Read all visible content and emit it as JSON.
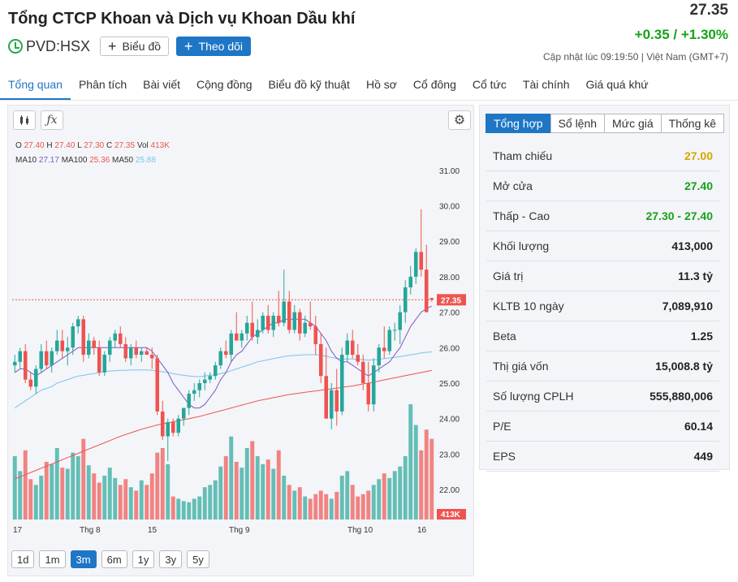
{
  "header": {
    "company": "Tổng CTCP Khoan và Dịch vụ Khoan Dầu khí",
    "ticker": "PVD:HSX",
    "chart_button": "Biểu đồ",
    "follow_button": "Theo dõi",
    "price": "27.35",
    "change": "+0.35 / +1.30%",
    "updated": "Cập nhật lúc  09:19:50 | Việt Nam (GMT+7)"
  },
  "tabs": [
    "Tổng quan",
    "Phân tích",
    "Bài viết",
    "Cộng đồng",
    "Biểu đồ kỹ thuật",
    "Hồ sơ",
    "Cổ đông",
    "Cổ tức",
    "Tài chính",
    "Giá quá khứ"
  ],
  "chart": {
    "ohlc": {
      "o_label": "O",
      "o": "27.40",
      "h_label": "H",
      "h": "27.40",
      "l_label": "L",
      "l": "27.30",
      "c_label": "C",
      "c": "27.35",
      "vol_label": "Vol",
      "vol": "413K"
    },
    "ma": {
      "ma10_label": "MA10",
      "ma10": "27.17",
      "ma100_label": "MA100",
      "ma100": "25.36",
      "ma50_label": "MA50",
      "ma50": "25.88"
    },
    "price_label": "27.35",
    "volume_label": "413K",
    "ranges": [
      "1d",
      "1m",
      "3m",
      "6m",
      "1y",
      "3y",
      "5y"
    ],
    "active_range": "3m",
    "colors": {
      "up": "#26a69a",
      "down": "#ef5350",
      "ma10": "#7e57c2",
      "ma50": "#79c3f0",
      "ma100": "#ef5350",
      "accent": "#1e76c5"
    }
  },
  "summary": {
    "tabs": [
      "Tổng hợp",
      "Sổ lệnh",
      "Mức giá",
      "Thống kê"
    ],
    "rows": [
      {
        "label": "Tham chiếu",
        "value": "27.00",
        "color": "#d4a700"
      },
      {
        "label": "Mở cửa",
        "value": "27.40",
        "color": "#16a218"
      },
      {
        "label": "Thấp - Cao",
        "value": "27.30 - 27.40",
        "color": "#16a218"
      },
      {
        "label": "Khối lượng",
        "value": "413,000",
        "color": "#222222"
      },
      {
        "label": "Giá trị",
        "value": "11.3 tỷ",
        "color": "#222222"
      },
      {
        "label": "KLTB 10 ngày",
        "value": "7,089,910",
        "color": "#222222"
      },
      {
        "label": "Beta",
        "value": "1.25",
        "color": "#222222"
      },
      {
        "label": "Thị giá vốn",
        "value": "15,008.8 tỷ",
        "color": "#222222"
      },
      {
        "label": "Số lượng CPLH",
        "value": "555,880,006",
        "color": "#222222"
      },
      {
        "label": "P/E",
        "value": "60.14",
        "color": "#222222"
      },
      {
        "label": "EPS",
        "value": "449",
        "color": "#222222"
      }
    ]
  },
  "chart_data": {
    "type": "candlestick",
    "y_ticks": [
      "31.00",
      "30.00",
      "29.00",
      "28.00",
      "27.00",
      "26.00",
      "25.00",
      "24.00",
      "23.00",
      "22.00"
    ],
    "ylim": [
      21.2,
      31.5
    ],
    "x_labels": [
      "17",
      "Thg 8",
      "15",
      "Thg 9",
      "Thg 10",
      "16"
    ],
    "reference_price": 27.35,
    "candles": [
      [
        25.5,
        25.8,
        25.3,
        25.6
      ],
      [
        25.6,
        26.0,
        25.4,
        25.9
      ],
      [
        25.9,
        26.1,
        25.0,
        25.1
      ],
      [
        25.1,
        25.3,
        24.8,
        24.9
      ],
      [
        24.9,
        25.5,
        24.7,
        25.4
      ],
      [
        25.4,
        26.1,
        25.3,
        25.9
      ],
      [
        25.9,
        26.2,
        25.4,
        25.5
      ],
      [
        25.5,
        26.0,
        25.3,
        25.9
      ],
      [
        25.9,
        26.5,
        25.8,
        26.2
      ],
      [
        26.2,
        26.5,
        25.7,
        25.9
      ],
      [
        25.9,
        26.3,
        25.5,
        26.0
      ],
      [
        26.0,
        26.7,
        25.8,
        26.6
      ],
      [
        26.6,
        26.9,
        26.4,
        26.8
      ],
      [
        26.8,
        26.9,
        25.6,
        25.8
      ],
      [
        25.8,
        26.4,
        25.7,
        26.2
      ],
      [
        26.2,
        26.3,
        25.8,
        26.0
      ],
      [
        26.0,
        26.2,
        25.2,
        25.3
      ],
      [
        25.3,
        25.9,
        25.2,
        25.8
      ],
      [
        25.8,
        26.3,
        25.6,
        26.2
      ],
      [
        26.2,
        26.5,
        26.0,
        26.4
      ],
      [
        26.4,
        26.6,
        26.0,
        26.1
      ],
      [
        26.1,
        26.3,
        25.6,
        25.7
      ],
      [
        25.7,
        26.1,
        25.5,
        26.0
      ],
      [
        26.0,
        26.2,
        25.7,
        25.8
      ],
      [
        25.8,
        26.0,
        25.6,
        25.9
      ],
      [
        25.9,
        26.0,
        25.8,
        25.8
      ],
      [
        25.8,
        26.0,
        25.4,
        25.7
      ],
      [
        25.7,
        25.8,
        24.1,
        24.2
      ],
      [
        24.2,
        24.5,
        23.4,
        23.5
      ],
      [
        23.5,
        24.0,
        22.8,
        23.9
      ],
      [
        23.9,
        24.0,
        23.5,
        23.6
      ],
      [
        23.6,
        24.1,
        23.5,
        24.0
      ],
      [
        24.0,
        24.3,
        23.8,
        24.3
      ],
      [
        24.3,
        24.8,
        24.1,
        24.7
      ],
      [
        24.7,
        25.0,
        24.5,
        24.8
      ],
      [
        24.8,
        25.1,
        24.6,
        25.0
      ],
      [
        25.0,
        25.3,
        24.8,
        25.1
      ],
      [
        25.1,
        25.3,
        25.0,
        25.2
      ],
      [
        25.2,
        25.6,
        25.1,
        25.5
      ],
      [
        25.5,
        26.0,
        25.4,
        25.9
      ],
      [
        25.9,
        26.2,
        25.7,
        25.8
      ],
      [
        25.8,
        26.5,
        25.6,
        26.4
      ],
      [
        26.4,
        27.0,
        26.2,
        26.2
      ],
      [
        26.2,
        26.5,
        26.0,
        26.4
      ],
      [
        26.4,
        26.9,
        26.2,
        26.7
      ],
      [
        26.7,
        27.3,
        26.2,
        26.3
      ],
      [
        26.3,
        26.8,
        26.1,
        26.5
      ],
      [
        26.5,
        27.0,
        26.4,
        26.9
      ],
      [
        26.9,
        27.2,
        26.4,
        26.5
      ],
      [
        26.5,
        27.0,
        26.3,
        26.9
      ],
      [
        26.9,
        27.6,
        26.6,
        26.7
      ],
      [
        26.7,
        28.2,
        26.6,
        27.3
      ],
      [
        27.3,
        27.6,
        26.4,
        26.5
      ],
      [
        26.5,
        27.2,
        26.4,
        27.0
      ],
      [
        27.0,
        27.1,
        26.2,
        26.4
      ],
      [
        26.4,
        26.9,
        26.3,
        26.7
      ],
      [
        26.7,
        27.3,
        26.5,
        26.6
      ],
      [
        26.6,
        26.9,
        25.8,
        26.1
      ],
      [
        26.1,
        26.4,
        25.0,
        25.2
      ],
      [
        25.2,
        26.0,
        24.0,
        24.0
      ],
      [
        24.0,
        25.0,
        23.7,
        24.8
      ],
      [
        24.8,
        25.4,
        23.8,
        24.2
      ],
      [
        24.2,
        26.0,
        24.1,
        25.8
      ],
      [
        25.8,
        26.4,
        25.6,
        26.2
      ],
      [
        26.2,
        26.5,
        25.7,
        25.8
      ],
      [
        25.8,
        26.1,
        25.5,
        25.6
      ],
      [
        25.6,
        25.8,
        24.8,
        25.0
      ],
      [
        25.0,
        25.6,
        24.2,
        24.4
      ],
      [
        24.4,
        25.7,
        24.2,
        25.5
      ],
      [
        25.5,
        26.1,
        25.3,
        26.0
      ],
      [
        26.0,
        26.6,
        25.7,
        25.9
      ],
      [
        25.9,
        26.6,
        25.8,
        26.5
      ],
      [
        26.5,
        26.7,
        26.2,
        26.5
      ],
      [
        26.5,
        27.2,
        26.1,
        27.0
      ],
      [
        27.0,
        27.9,
        26.7,
        27.7
      ],
      [
        27.7,
        28.3,
        27.5,
        28.0
      ],
      [
        28.0,
        28.8,
        27.8,
        28.7
      ],
      [
        28.7,
        29.9,
        28.0,
        28.2
      ],
      [
        28.2,
        28.9,
        27.0,
        27.0
      ],
      [
        27.4,
        27.4,
        27.3,
        27.35
      ]
    ],
    "volume": [
      0.55,
      0.42,
      0.6,
      0.35,
      0.3,
      0.38,
      0.5,
      0.48,
      0.62,
      0.45,
      0.44,
      0.58,
      0.55,
      0.7,
      0.47,
      0.4,
      0.32,
      0.38,
      0.45,
      0.36,
      0.3,
      0.35,
      0.28,
      0.25,
      0.34,
      0.3,
      0.4,
      0.58,
      0.62,
      0.48,
      0.2,
      0.18,
      0.16,
      0.15,
      0.18,
      0.2,
      0.28,
      0.3,
      0.34,
      0.46,
      0.55,
      0.72,
      0.5,
      0.45,
      0.62,
      0.68,
      0.55,
      0.48,
      0.52,
      0.44,
      0.6,
      0.38,
      0.3,
      0.25,
      0.28,
      0.2,
      0.18,
      0.22,
      0.25,
      0.22,
      0.18,
      0.24,
      0.38,
      0.42,
      0.3,
      0.2,
      0.22,
      0.25,
      0.3,
      0.35,
      0.4,
      0.36,
      0.42,
      0.46,
      0.55,
      1.0,
      0.82,
      0.6,
      0.78,
      0.7
    ],
    "ma10": [
      25.3,
      25.4,
      25.4,
      25.3,
      25.2,
      25.3,
      25.4,
      25.5,
      25.6,
      25.7,
      25.8,
      25.9,
      26.0,
      26.0,
      26.0,
      26.0,
      26.0,
      26.0,
      26.0,
      26.0,
      26.0,
      26.0,
      26.0,
      26.0,
      26.0,
      26.0,
      25.9,
      25.7,
      25.5,
      25.3,
      25.0,
      24.8,
      24.6,
      24.4,
      24.3,
      24.3,
      24.4,
      24.6,
      24.8,
      25.1,
      25.3,
      25.6,
      25.8,
      25.9,
      26.1,
      26.3,
      26.4,
      26.5,
      26.6,
      26.7,
      26.7,
      26.8,
      26.8,
      26.8,
      26.8,
      26.8,
      26.7,
      26.6,
      26.4,
      26.2,
      25.9,
      25.7,
      25.6,
      25.6,
      25.5,
      25.4,
      25.3,
      25.2,
      25.3,
      25.4,
      25.5,
      25.6,
      25.8,
      26.0,
      26.3,
      26.6,
      26.8,
      27.0,
      27.1,
      27.17
    ],
    "ma50": [
      24.3,
      24.4,
      24.5,
      24.6,
      24.7,
      24.8,
      24.85,
      24.9,
      25.0,
      25.05,
      25.1,
      25.15,
      25.2,
      25.22,
      25.25,
      25.27,
      25.3,
      25.32,
      25.34,
      25.35,
      25.36,
      25.36,
      25.37,
      25.37,
      25.37,
      25.37,
      25.36,
      25.34,
      25.32,
      25.3,
      25.27,
      25.24,
      25.22,
      25.2,
      25.19,
      25.18,
      25.2,
      25.22,
      25.24,
      25.27,
      25.3,
      25.35,
      25.4,
      25.45,
      25.5,
      25.55,
      25.6,
      25.63,
      25.66,
      25.69,
      25.72,
      25.75,
      25.77,
      25.78,
      25.79,
      25.8,
      25.8,
      25.8,
      25.78,
      25.76,
      25.72,
      25.7,
      25.68,
      25.68,
      25.68,
      25.67,
      25.66,
      25.65,
      25.66,
      25.67,
      25.69,
      25.71,
      25.73,
      25.75,
      25.77,
      25.8,
      25.82,
      25.85,
      25.87,
      25.88
    ],
    "ma100": [
      22.3,
      22.36,
      22.42,
      22.48,
      22.54,
      22.6,
      22.66,
      22.72,
      22.78,
      22.84,
      22.9,
      22.96,
      23.02,
      23.08,
      23.14,
      23.2,
      23.26,
      23.32,
      23.38,
      23.44,
      23.5,
      23.55,
      23.6,
      23.65,
      23.7,
      23.74,
      23.78,
      23.82,
      23.85,
      23.88,
      23.91,
      23.94,
      23.97,
      24.0,
      24.03,
      24.06,
      24.1,
      24.14,
      24.18,
      24.22,
      24.26,
      24.3,
      24.34,
      24.38,
      24.42,
      24.46,
      24.5,
      24.53,
      24.56,
      24.59,
      24.62,
      24.65,
      24.68,
      24.7,
      24.72,
      24.74,
      24.76,
      24.78,
      24.8,
      24.82,
      24.84,
      24.86,
      24.88,
      24.9,
      24.92,
      24.95,
      24.98,
      25.0,
      25.03,
      25.06,
      25.09,
      25.12,
      25.15,
      25.18,
      25.21,
      25.24,
      25.27,
      25.3,
      25.33,
      25.36
    ]
  }
}
